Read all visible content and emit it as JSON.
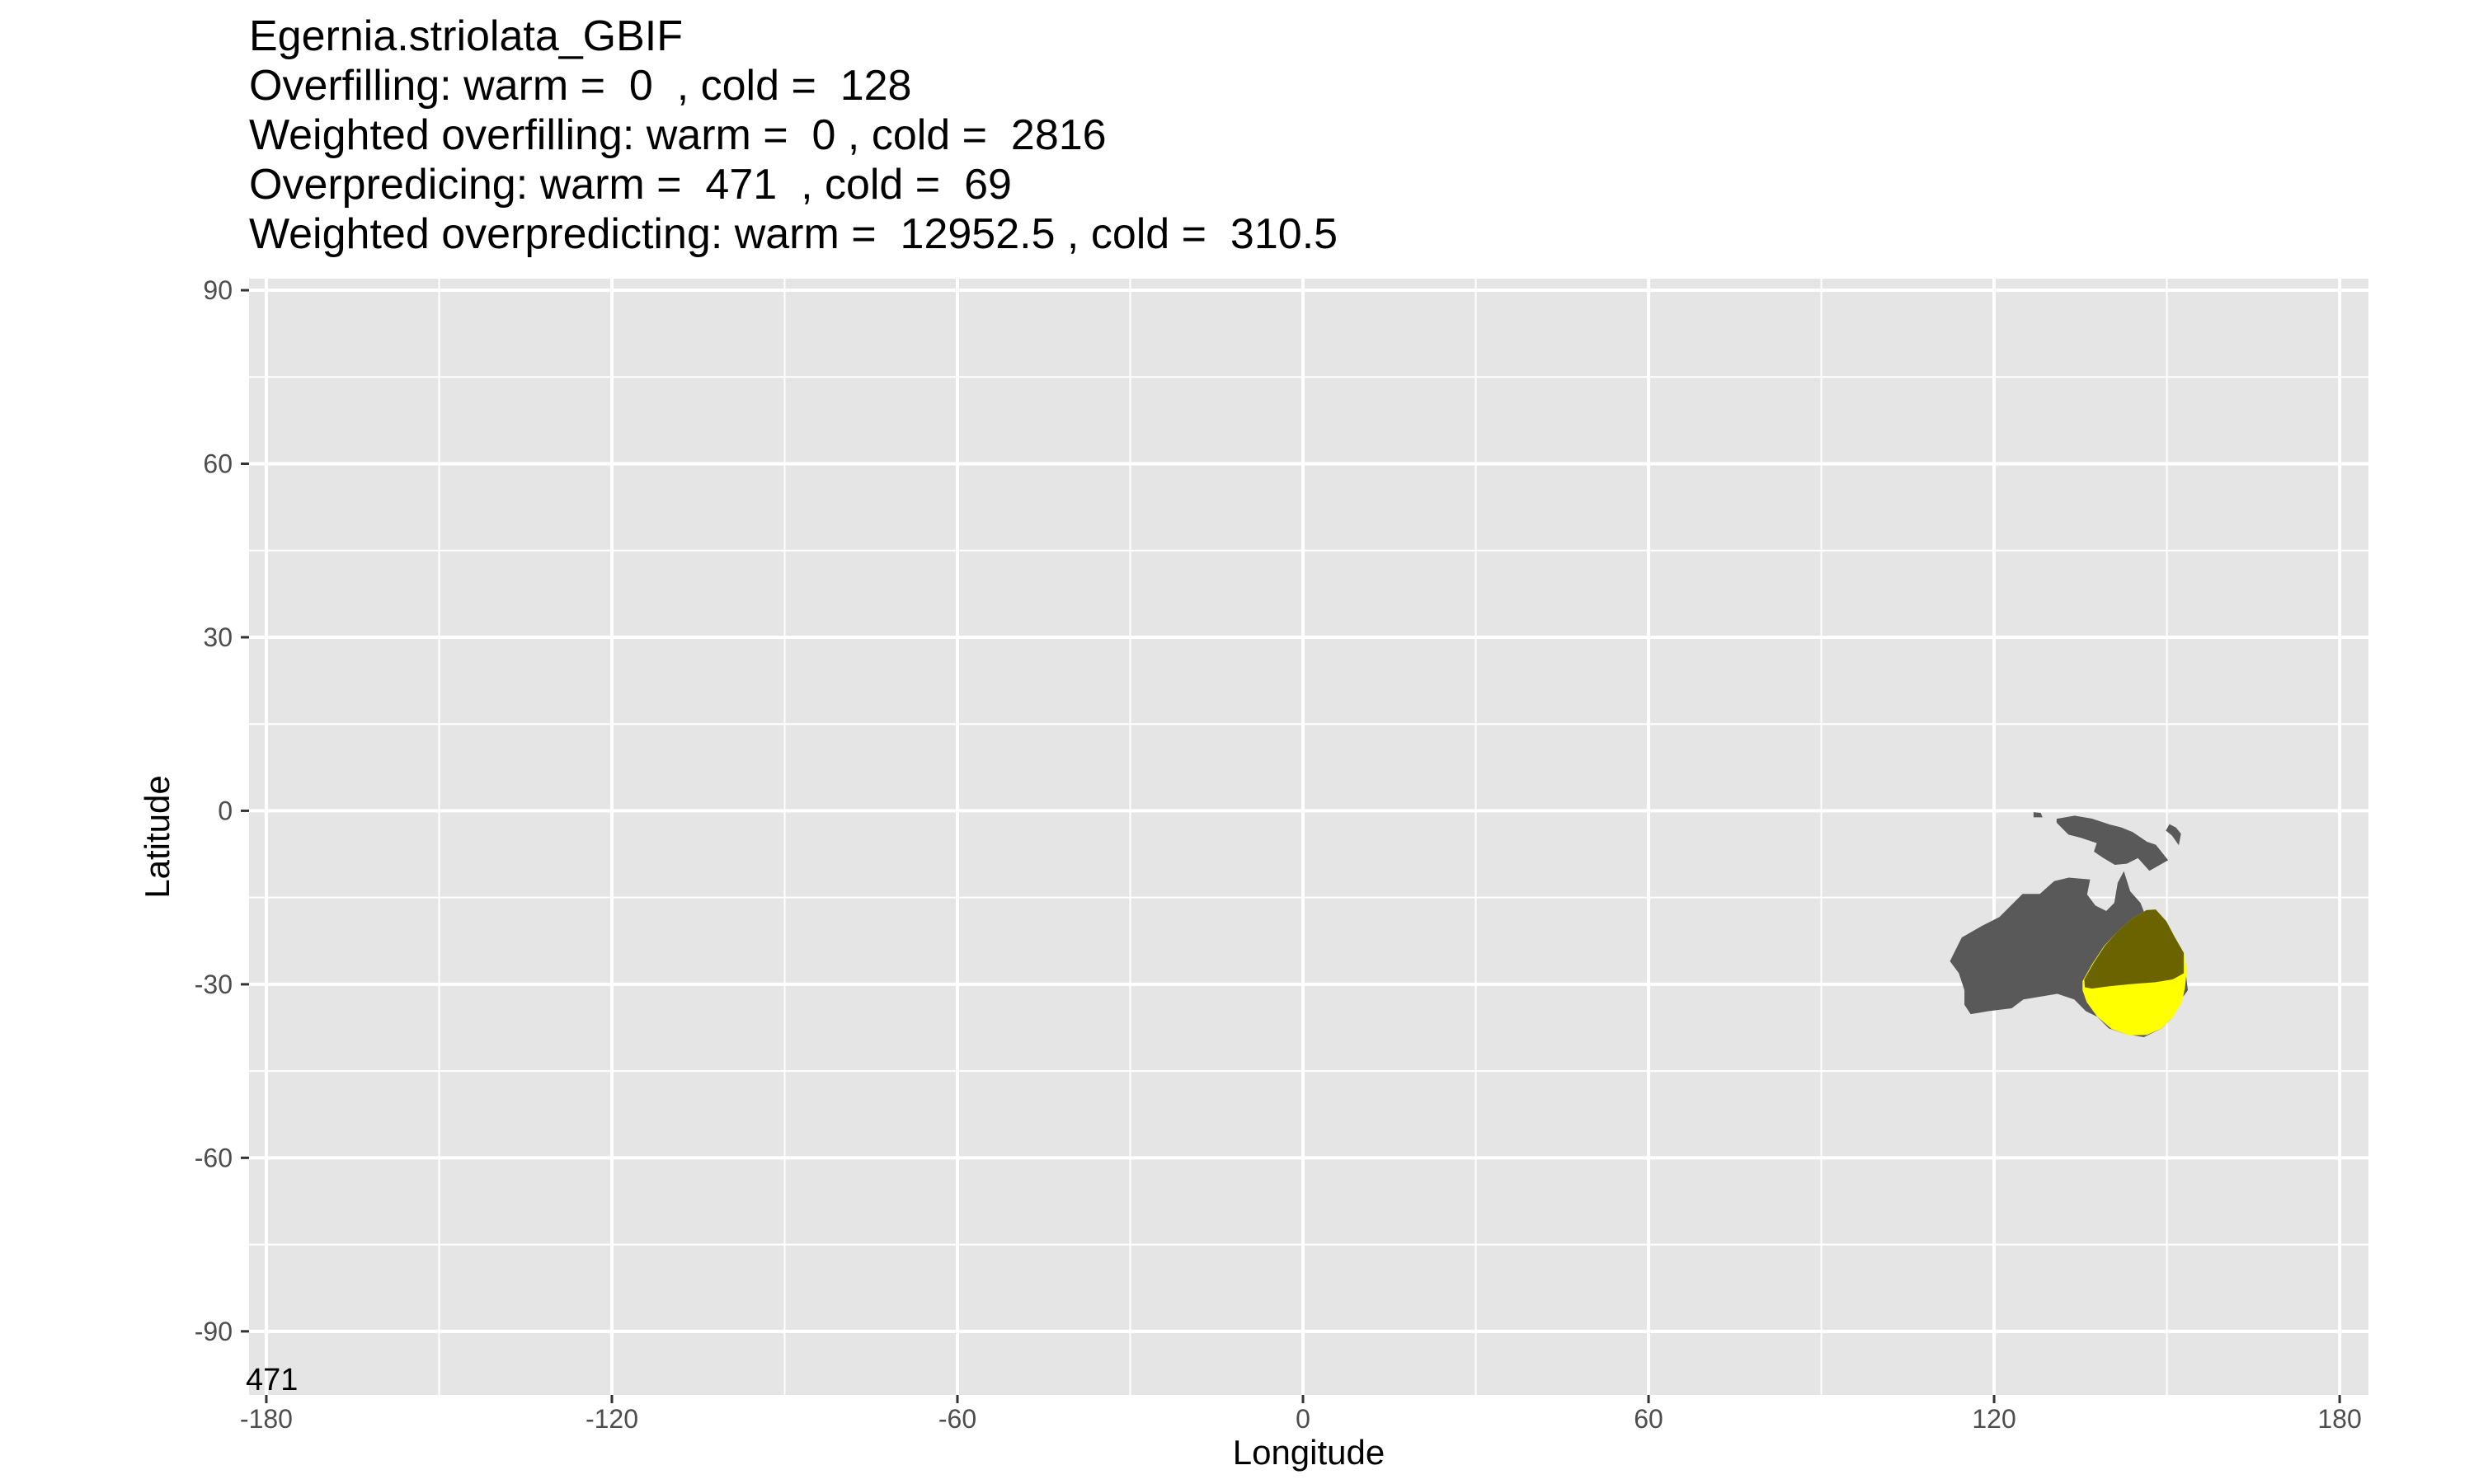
{
  "title": {
    "line1": "Egernia.striolata_GBIF",
    "line2": "Overfilling: warm =  0  , cold =  128",
    "line3": "Weighted overfilling: warm =  0 , cold =  2816",
    "line4": "Overpredicing: warm =  471  , cold =  69",
    "line5": "Weighted overpredicting: warm =  12952.5 , cold =  310.5"
  },
  "map": {
    "xlabel": "Longitude",
    "ylabel": "Latitude",
    "xlim": [
      -183,
      185
    ],
    "ylim": [
      -101,
      92
    ],
    "xticks": [
      -180,
      -120,
      -60,
      0,
      60,
      120,
      180
    ],
    "yticks": [
      -90,
      -60,
      -30,
      0,
      30,
      60,
      90
    ],
    "corner_label": "471",
    "panel_color": "#e5e5e5",
    "grid_color": "#ffffff",
    "layers": [
      {
        "name": "",
        "color": "#595959",
        "polygons": [
          [
            [
              112.5,
              -26
            ],
            [
              114.5,
              -22
            ],
            [
              118,
              -20
            ],
            [
              121,
              -18.5
            ],
            [
              123,
              -16.5
            ],
            [
              125,
              -14.5
            ],
            [
              128,
              -14.5
            ],
            [
              130.5,
              -12.3
            ],
            [
              133,
              -11.7
            ],
            [
              136.5,
              -12
            ],
            [
              136,
              -14.5
            ],
            [
              137.5,
              -16.5
            ],
            [
              139.5,
              -17.5
            ],
            [
              141,
              -16
            ],
            [
              141.6,
              -12.5
            ],
            [
              142.5,
              -10.8
            ],
            [
              143.5,
              -14
            ],
            [
              145.3,
              -16
            ],
            [
              146.5,
              -19
            ],
            [
              149,
              -21
            ],
            [
              151,
              -24
            ],
            [
              153,
              -27
            ],
            [
              153.5,
              -31
            ],
            [
              152,
              -33
            ],
            [
              150.5,
              -36
            ],
            [
              149,
              -37.5
            ],
            [
              146,
              -39
            ],
            [
              143,
              -38.5
            ],
            [
              140,
              -37.5
            ],
            [
              138,
              -35.5
            ],
            [
              136,
              -34.5
            ],
            [
              134,
              -32.5
            ],
            [
              131,
              -31.5
            ],
            [
              128,
              -32
            ],
            [
              125,
              -32.5
            ],
            [
              123,
              -34
            ],
            [
              119,
              -34.5
            ],
            [
              116,
              -35
            ],
            [
              115,
              -33.5
            ],
            [
              115,
              -31
            ],
            [
              114,
              -28
            ],
            [
              112.5,
              -26
            ]
          ],
          [
            [
              131,
              -1.5
            ],
            [
              134,
              -1
            ],
            [
              137,
              -1.5
            ],
            [
              140,
              -2.5
            ],
            [
              142,
              -3
            ],
            [
              144,
              -3.8
            ],
            [
              146.5,
              -5.5
            ],
            [
              148,
              -6
            ],
            [
              150,
              -8.5
            ],
            [
              147,
              -10.2
            ],
            [
              145,
              -8
            ],
            [
              143,
              -9
            ],
            [
              141,
              -9.2
            ],
            [
              139,
              -8
            ],
            [
              137.5,
              -7
            ],
            [
              138,
              -5.5
            ],
            [
              135,
              -4.5
            ],
            [
              133,
              -4
            ],
            [
              132,
              -3
            ],
            [
              131,
              -2
            ]
          ],
          [
            [
              150.5,
              -2.5
            ],
            [
              151.5,
              -3
            ],
            [
              152.3,
              -4
            ],
            [
              152,
              -5.6
            ],
            [
              151,
              -4.2
            ],
            [
              150,
              -3.4
            ]
          ],
          [
            [
              127,
              -0.4
            ],
            [
              128,
              -0.5
            ],
            [
              128.2,
              -1
            ],
            [
              127,
              -1
            ]
          ]
        ]
      },
      {
        "name": "",
        "color": "#ffff00",
        "polygons": [
          [
            [
              135.5,
              -29.5
            ],
            [
              137.2,
              -26.5
            ],
            [
              139.2,
              -23.5
            ],
            [
              141.5,
              -21
            ],
            [
              144,
              -18.8
            ],
            [
              146.5,
              -17.3
            ],
            [
              148,
              -17.2
            ],
            [
              149.8,
              -19.2
            ],
            [
              151.3,
              -22
            ],
            [
              152.8,
              -24.6
            ],
            [
              153.3,
              -27.6
            ],
            [
              153,
              -30.6
            ],
            [
              152.5,
              -33
            ],
            [
              151,
              -35.5
            ],
            [
              149,
              -37.5
            ],
            [
              146.5,
              -38.6
            ],
            [
              143.5,
              -38.7
            ],
            [
              140.5,
              -37.6
            ],
            [
              138,
              -35.5
            ],
            [
              136.2,
              -33
            ],
            [
              135.5,
              -31
            ]
          ]
        ]
      },
      {
        "name": "",
        "color": "#6b6300",
        "polygons": [
          [
            [
              135.8,
              -29.2
            ],
            [
              137.4,
              -26.4
            ],
            [
              139.3,
              -23.5
            ],
            [
              141.5,
              -21
            ],
            [
              144,
              -18.8
            ],
            [
              146.5,
              -17.3
            ],
            [
              148,
              -17.2
            ],
            [
              149.8,
              -19.2
            ],
            [
              151.3,
              -22
            ],
            [
              152.8,
              -24.6
            ],
            [
              152.8,
              -28
            ],
            [
              151,
              -29
            ],
            [
              148,
              -29.5
            ],
            [
              144,
              -29.8
            ],
            [
              140,
              -30.2
            ],
            [
              137,
              -30.6
            ],
            [
              135.9,
              -30.4
            ]
          ]
        ]
      }
    ]
  }
}
